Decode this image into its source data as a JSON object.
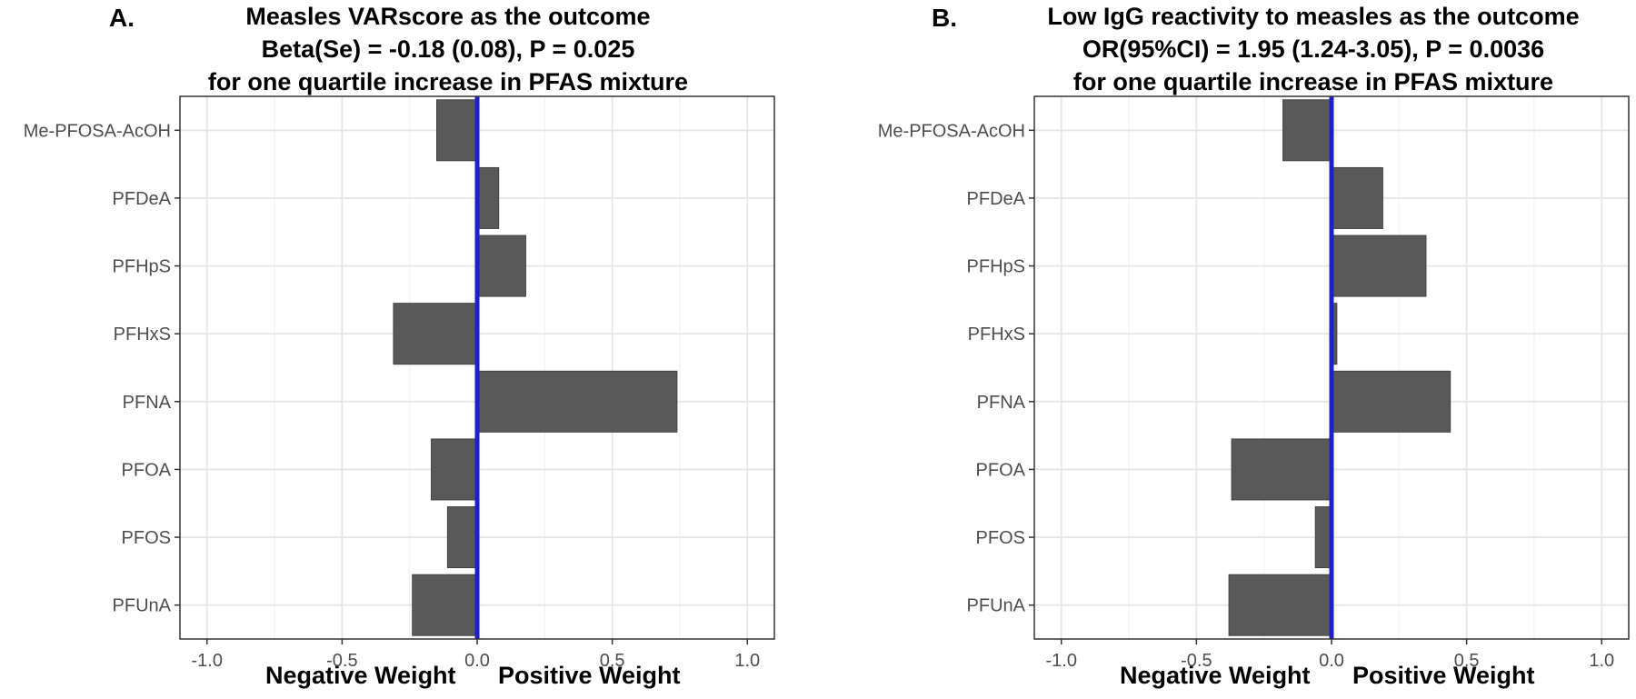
{
  "chart_data": [
    {
      "type": "bar",
      "orientation": "horizontal",
      "panel_label": "A.",
      "title": [
        "Measles VARscore as the outcome",
        "Beta(Se) = -0.18 (0.08), P = 0.025",
        "for one quartile increase in PFAS mixture"
      ],
      "categories": [
        "Me-PFOSA-AcOH",
        "PFDeA",
        "PFHpS",
        "PFHxS",
        "PFNA",
        "PFOA",
        "PFOS",
        "PFUnA"
      ],
      "values": [
        -0.15,
        0.08,
        0.18,
        -0.31,
        0.74,
        -0.17,
        -0.11,
        -0.24
      ],
      "xlim": [
        -1.1,
        1.1
      ],
      "xticks": [
        -1.0,
        -0.5,
        0.0,
        0.5,
        1.0
      ],
      "xtick_labels": [
        "-1.0",
        "-0.5",
        "0.0",
        "0.5",
        "1.0"
      ],
      "xlabel_negative": "Negative Weight",
      "xlabel_positive": "Positive Weight",
      "reference_line": 0.0,
      "reference_color": "#1f1fcc",
      "bar_color": "#595959",
      "grid": true
    },
    {
      "type": "bar",
      "orientation": "horizontal",
      "panel_label": "B.",
      "title": [
        "Low IgG reactivity to measles as the outcome",
        "OR(95%CI) = 1.95 (1.24-3.05), P = 0.0036",
        "for one quartile increase in PFAS mixture"
      ],
      "categories": [
        "Me-PFOSA-AcOH",
        "PFDeA",
        "PFHpS",
        "PFHxS",
        "PFNA",
        "PFOA",
        "PFOS",
        "PFUnA"
      ],
      "values": [
        -0.18,
        0.19,
        0.35,
        0.02,
        0.44,
        -0.37,
        -0.06,
        -0.38
      ],
      "xlim": [
        -1.1,
        1.1
      ],
      "xticks": [
        -1.0,
        -0.5,
        0.0,
        0.5,
        1.0
      ],
      "xtick_labels": [
        "-1.0",
        "-0.5",
        "0.0",
        "0.5",
        "1.0"
      ],
      "xlabel_negative": "Negative Weight",
      "xlabel_positive": "Positive Weight",
      "reference_line": 0.0,
      "reference_color": "#1f1fcc",
      "bar_color": "#595959",
      "grid": true
    }
  ]
}
